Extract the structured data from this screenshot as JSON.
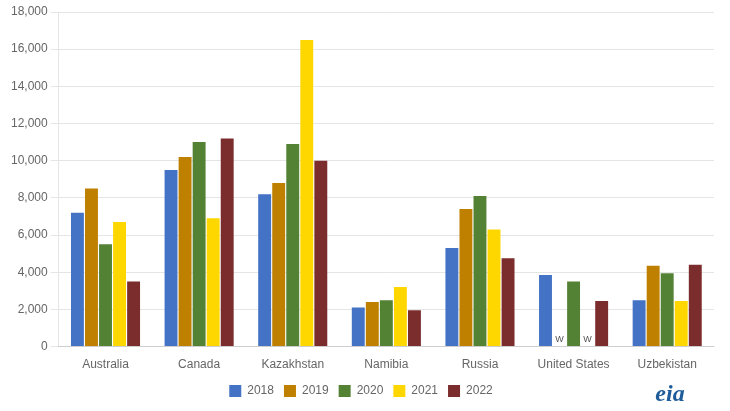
{
  "chart_data": {
    "type": "bar",
    "categories": [
      "Australia",
      "Canada",
      "Kazakhstan",
      "Namibia",
      "Russia",
      "United States",
      "Uzbekistan"
    ],
    "series": [
      {
        "name": "2018",
        "color": "#4472C4",
        "values": [
          7200,
          9500,
          8200,
          2100,
          5300,
          3850,
          2500
        ]
      },
      {
        "name": "2019",
        "color": "#BF8000",
        "values": [
          8500,
          10200,
          8800,
          2400,
          7400,
          0,
          4350
        ]
      },
      {
        "name": "2020",
        "color": "#548235",
        "values": [
          5500,
          11000,
          10900,
          2500,
          8100,
          3500,
          3950
        ]
      },
      {
        "name": "2021",
        "color": "#FFD700",
        "values": [
          6700,
          6900,
          16500,
          3200,
          6300,
          0,
          2450
        ]
      },
      {
        "name": "2022",
        "color": "#7B2C2C",
        "values": [
          3500,
          11200,
          10000,
          1950,
          4750,
          2450,
          4400
        ]
      }
    ],
    "ylim": [
      0,
      18000
    ],
    "yticks": [
      0,
      {
        "value": 2000,
        "label": "2,000"
      },
      {
        "value": 4000,
        "label": "4,000"
      },
      {
        "value": 6000,
        "label": "6,000"
      },
      {
        "value": 8000,
        "label": "8,000"
      },
      {
        "value": 10000,
        "label": "10,000"
      },
      {
        "value": 12000,
        "label": "12,000"
      },
      {
        "value": 14000,
        "label": "14,000"
      },
      {
        "value": 16000,
        "label": "16,000"
      },
      {
        "value": 18000,
        "label": "18,000"
      }
    ],
    "grid": true,
    "legend": "bottom",
    "annotations": [
      {
        "text": "W",
        "x": "United States",
        "series": "2019",
        "y": 120,
        "color": "#555555"
      },
      {
        "text": "W",
        "x": "United States",
        "series": "2021",
        "y": 120,
        "color": "#555555"
      },
      {
        "text": "eia",
        "color": "#1F5C99"
      }
    ]
  }
}
